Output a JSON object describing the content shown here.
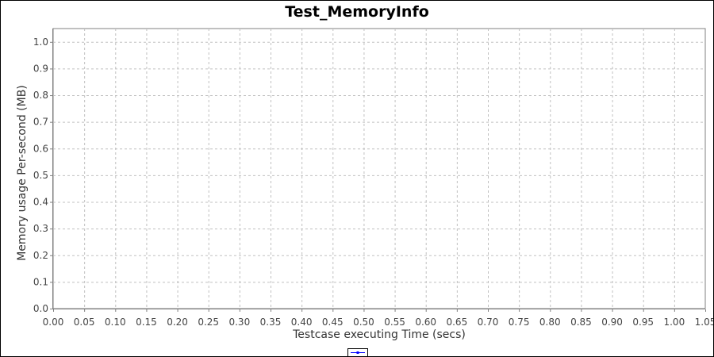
{
  "chart_data": {
    "type": "line",
    "title": "Test_MemoryInfo",
    "xlabel": "Testcase executing Time (secs)",
    "ylabel": "Memory usage Per-second (MB)",
    "xlim": [
      0.0,
      1.05
    ],
    "ylim": [
      0.0,
      1.05
    ],
    "x_ticks": [
      "0.00",
      "0.05",
      "0.10",
      "0.15",
      "0.20",
      "0.25",
      "0.30",
      "0.35",
      "0.40",
      "0.45",
      "0.50",
      "0.55",
      "0.60",
      "0.65",
      "0.70",
      "0.75",
      "0.80",
      "0.85",
      "0.90",
      "0.95",
      "1.00",
      "1.05"
    ],
    "y_ticks": [
      "0.0",
      "0.1",
      "0.2",
      "0.3",
      "0.4",
      "0.5",
      "0.6",
      "0.7",
      "0.8",
      "0.9",
      "1.0"
    ],
    "grid": true,
    "legend_position": "bottom",
    "series": [
      {
        "color": "#0000ff",
        "x": [],
        "y": []
      }
    ]
  }
}
